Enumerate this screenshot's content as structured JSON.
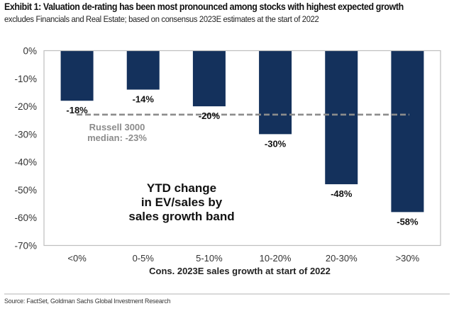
{
  "header": {
    "title": "Exhibit 1: Valuation de-rating has been most pronounced among stocks with highest expected growth",
    "subtitle": "excludes Financials and Real Estate; based on consensus 2023E estimates at the start of 2022"
  },
  "footer": {
    "source": "Source: FactSet, Goldman Sachs Global Investment Research"
  },
  "colors": {
    "bar": "#14315c",
    "reference_line": "#8c8c8c",
    "reference_text": "#8c8c8c",
    "axis": "#bfbfbf",
    "text": "#222222"
  },
  "chart_data": {
    "type": "bar",
    "title": "Exhibit 1: Valuation de-rating has been most pronounced among stocks with highest expected growth",
    "subtitle": "excludes Financials and Real Estate; based on consensus 2023E estimates at the start of 2022",
    "categories": [
      "<0%",
      "0-5%",
      "5-10%",
      "10-20%",
      "20-30%",
      ">30%"
    ],
    "values": [
      -18,
      -14,
      -20,
      -30,
      -48,
      -58
    ],
    "data_labels": [
      "-18%",
      "-14%",
      "-20%",
      "-30%",
      "-48%",
      "-58%"
    ],
    "xlabel": "Cons. 2023E sales growth at start of 2022",
    "ylabel": "",
    "ylim": [
      -70,
      0
    ],
    "yticks": [
      0,
      -10,
      -20,
      -30,
      -40,
      -50,
      -60,
      -70
    ],
    "ytick_labels": [
      "0%",
      "-10%",
      "-20%",
      "-30%",
      "-40%",
      "-50%",
      "-60%",
      "-70%"
    ],
    "grid": false,
    "legend": null,
    "reference_line": {
      "value": -23,
      "style": "dashed",
      "label_lines": [
        "Russell 3000",
        "median: -23%"
      ]
    },
    "annotation": {
      "lines": [
        "YTD change",
        "in EV/sales by",
        "sales growth band"
      ]
    }
  }
}
